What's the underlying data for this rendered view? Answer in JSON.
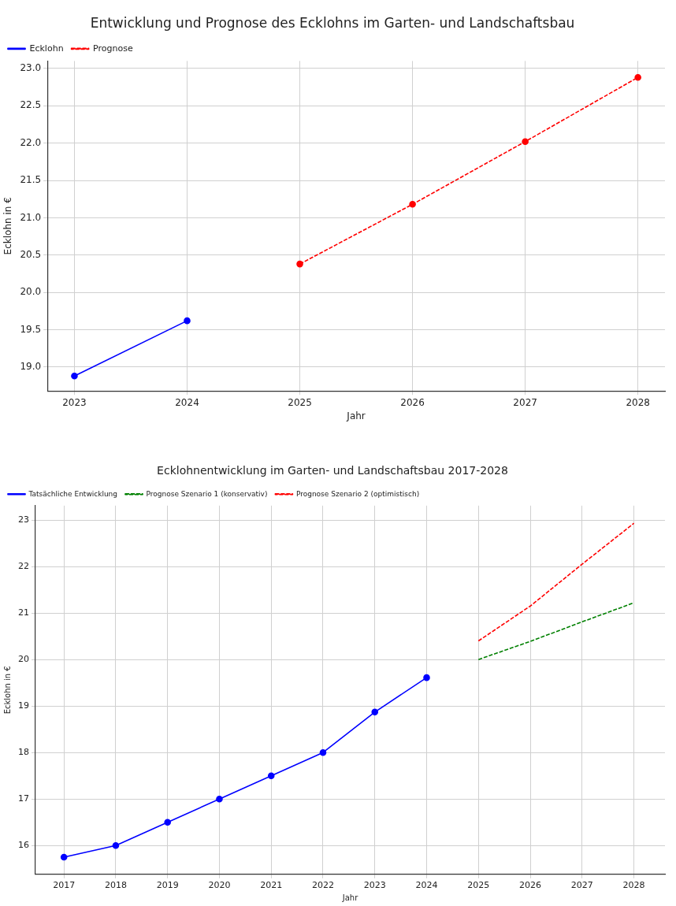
{
  "chart_data": [
    {
      "type": "line",
      "title": "Entwicklung und Prognose des Ecklohns im Garten- und Landschaftsbau",
      "xlabel": "Jahr",
      "ylabel": "Ecklohn in €",
      "xlim": [
        2022.76,
        2028.24
      ],
      "xticks": [
        2023,
        2024,
        2025,
        2026,
        2027,
        2028
      ],
      "ylim": [
        18.68,
        23.1
      ],
      "yticks": [
        {
          "value": 19,
          "label": "19.0"
        },
        19.5,
        {
          "value": 20,
          "label": "20.0"
        },
        20.5,
        {
          "value": 21,
          "label": "21.0"
        },
        21.5,
        {
          "value": 22,
          "label": "22.0"
        },
        22.5,
        {
          "value": 23,
          "label": "23.0"
        }
      ],
      "grid": true,
      "legend": "top left",
      "series": [
        {
          "name": "Ecklohn",
          "color": "#0000ff",
          "x": [
            2023,
            2024
          ],
          "values": [
            18.88,
            19.62
          ],
          "marker": "circle",
          "line_style": "solid"
        },
        {
          "name": "Prognose",
          "color": "#ff0000",
          "x": [
            2025,
            2026,
            2027,
            2028
          ],
          "values": [
            20.38,
            21.18,
            22.02,
            22.88
          ],
          "marker": "circle",
          "line_style": "dashed"
        }
      ]
    },
    {
      "type": "line",
      "title": "Ecklohnentwicklung im Garten- und Landschaftsbau 2017-2028",
      "xlabel": "Jahr",
      "ylabel": "Ecklohn in €",
      "xlim": [
        2016.45,
        2028.6
      ],
      "xticks": [
        2017,
        2018,
        2019,
        2020,
        2021,
        2022,
        2023,
        2024,
        2025,
        2026,
        2027,
        2028
      ],
      "ylim": [
        15.38,
        23.31
      ],
      "yticks": [
        16,
        17,
        18,
        19,
        20,
        21,
        22,
        23
      ],
      "grid": true,
      "legend": "top left",
      "series": [
        {
          "name": "Tatsächliche Entwicklung",
          "color": "#0000ff",
          "x": [
            2017,
            2018,
            2019,
            2020,
            2021,
            2022,
            2023,
            2024
          ],
          "values": [
            15.75,
            16.0,
            16.5,
            17.0,
            17.5,
            18.0,
            18.87,
            19.61
          ],
          "marker": "circle",
          "line_style": "solid"
        },
        {
          "name": "Prognose Szenario 1 (konservativ)",
          "color": "#008000",
          "x": [
            2025,
            2026,
            2027,
            2028
          ],
          "values": [
            20.0,
            20.39,
            20.81,
            21.22
          ],
          "marker": "none",
          "line_style": "dashed"
        },
        {
          "name": "Prognose Szenario 2 (optimistisch)",
          "color": "#ff0000",
          "x": [
            2025,
            2026,
            2027,
            2028
          ],
          "values": [
            20.4,
            21.15,
            22.05,
            22.93
          ],
          "marker": "none",
          "line_style": "dashed"
        }
      ]
    }
  ]
}
